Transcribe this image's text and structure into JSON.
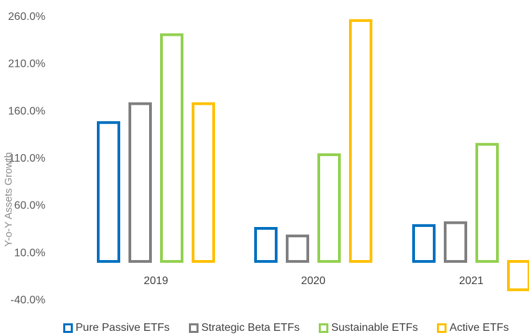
{
  "chart_data": {
    "type": "bar",
    "ylabel": "Y-o-Y Assets Growth",
    "xlabel": "",
    "categories": [
      "2019",
      "2020",
      "2021"
    ],
    "ylim": [
      -40,
      260
    ],
    "yticks": [
      -40,
      10,
      60,
      110,
      160,
      210,
      260
    ],
    "ytick_labels": [
      "-40.0%",
      "10.0%",
      "60.0%",
      "110.0%",
      "160.0%",
      "210.0%",
      "260.0%"
    ],
    "bar_style": "outline",
    "legend_position": "bottom",
    "grid": false,
    "series": [
      {
        "name": "Pure Passive ETFs",
        "color": "#0070C0",
        "values": [
          147,
          35,
          38
        ]
      },
      {
        "name": "Strategic Beta ETFs",
        "color": "#7F7F7F",
        "values": [
          167,
          27,
          41
        ]
      },
      {
        "name": "Sustainable ETFs",
        "color": "#92D050",
        "values": [
          240,
          113,
          124
        ]
      },
      {
        "name": "Active ETFs",
        "color": "#FFC000",
        "values": [
          167,
          255,
          -30
        ]
      }
    ]
  }
}
